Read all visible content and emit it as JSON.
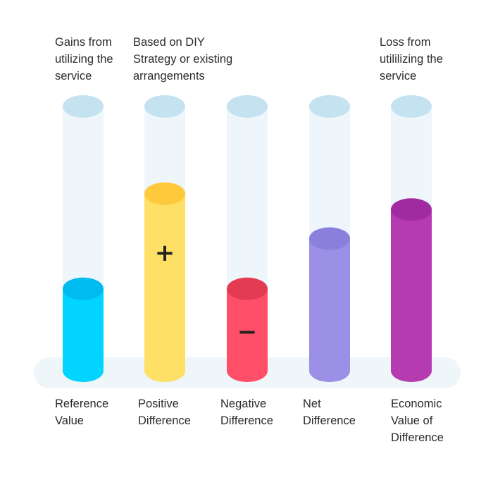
{
  "top_labels": {
    "gains": "Gains from\nutilizing the\nservice",
    "diy": "Based on DIY\nStrategy or existing\narrangements",
    "loss": "Loss from\nutililizing the\nservice"
  },
  "columns": [
    {
      "label": "Reference\nValue",
      "level": 0.31,
      "color": "#00d4ff",
      "top_color": "#00bbee",
      "sign": ""
    },
    {
      "label": "Positive\nDifference",
      "level": 0.67,
      "color": "#ffe066",
      "top_color": "#ffc93c",
      "sign": "+"
    },
    {
      "label": "Negative\nDifference",
      "level": 0.31,
      "color": "#ff4f68",
      "top_color": "#e43b55",
      "sign": "−"
    },
    {
      "label": "Net\nDifference",
      "level": 0.5,
      "color": "#9b8fe6",
      "top_color": "#8b7fdc",
      "sign": ""
    },
    {
      "label": "Economic\nValue of\nDifference",
      "level": 0.61,
      "color": "#b53cb0",
      "top_color": "#a02aa0",
      "sign": ""
    }
  ],
  "colors": {
    "tube_body": "#eef6fb",
    "tube_cap": "#c5e2f0",
    "base_platform": "#eef6fa"
  }
}
